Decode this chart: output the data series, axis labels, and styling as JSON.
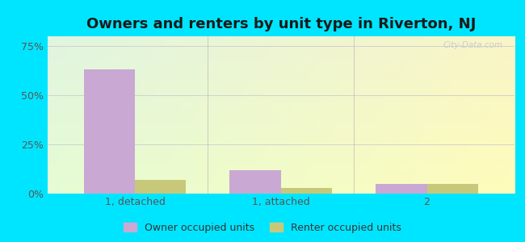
{
  "title": "Owners and renters by unit type in Riverton, NJ",
  "categories": [
    "1, detached",
    "1, attached",
    "2"
  ],
  "owner_values": [
    63,
    12,
    5
  ],
  "renter_values": [
    7,
    3,
    5
  ],
  "owner_color": "#c9a8d4",
  "renter_color": "#c8c87a",
  "yticks": [
    0,
    25,
    50,
    75
  ],
  "ytick_labels": [
    "0%",
    "25%",
    "50%",
    "75%"
  ],
  "ylim": [
    0,
    80
  ],
  "bar_width": 0.35,
  "legend_owner": "Owner occupied units",
  "legend_renter": "Renter occupied units",
  "bg_outer": "#00e5ff",
  "title_fontsize": 13,
  "axis_label_fontsize": 9,
  "legend_fontsize": 9,
  "watermark": "City-Data.com"
}
